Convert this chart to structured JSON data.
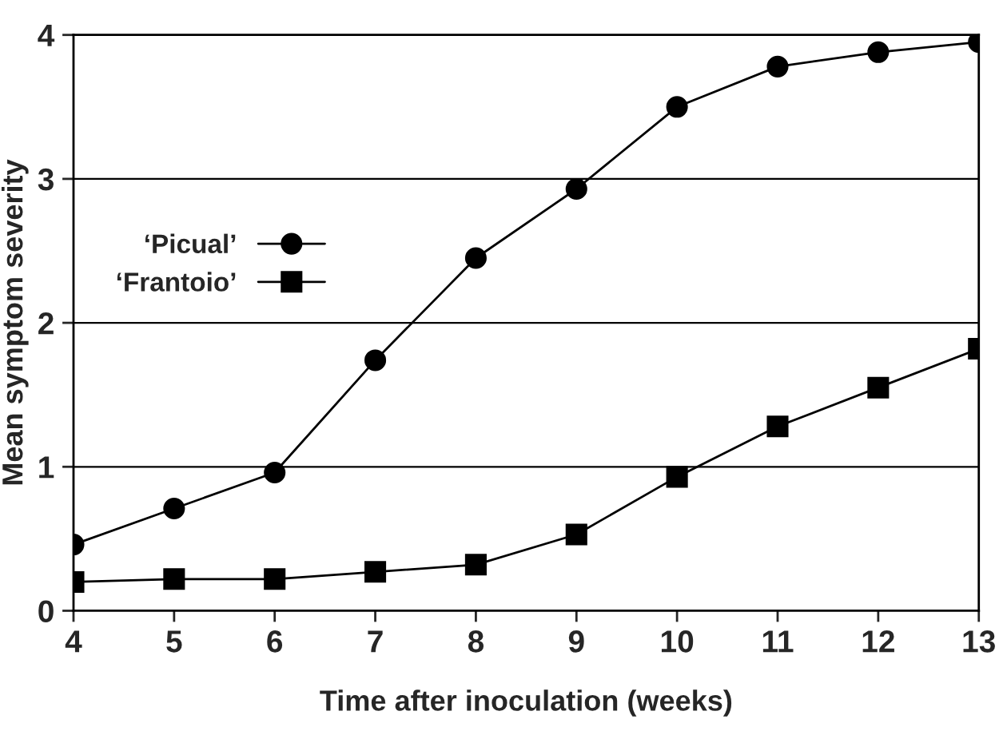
{
  "chart_data": {
    "type": "line",
    "xlabel": "Time after inoculation (weeks)",
    "ylabel": "Mean symptom severity",
    "x": [
      4,
      5,
      6,
      7,
      8,
      9,
      10,
      11,
      12,
      13
    ],
    "series": [
      {
        "name": "‘Picual’",
        "color": "#000000",
        "marker": "circle",
        "values": [
          0.46,
          0.71,
          0.96,
          1.74,
          2.45,
          2.93,
          3.5,
          3.78,
          3.88,
          3.95
        ]
      },
      {
        "name": "‘Frantoio’",
        "color": "#000000",
        "marker": "square",
        "values": [
          0.2,
          0.22,
          0.22,
          0.27,
          0.32,
          0.53,
          0.93,
          1.28,
          1.55,
          1.82
        ]
      }
    ],
    "xlim": [
      4,
      13
    ],
    "xticks": [
      4,
      5,
      6,
      7,
      8,
      9,
      10,
      11,
      12,
      13
    ],
    "ylim": [
      0,
      4
    ],
    "yticks": [
      0,
      1,
      2,
      3,
      4
    ],
    "grid": "y",
    "legend": "left",
    "line_style": "solid"
  }
}
